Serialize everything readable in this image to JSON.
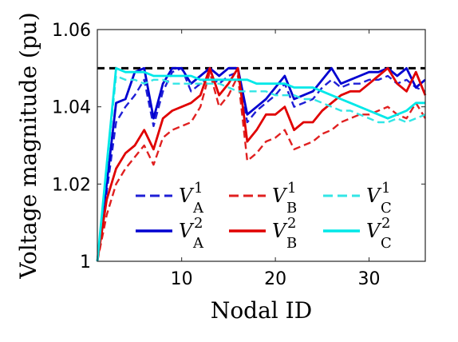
{
  "chart_data": {
    "type": "line",
    "xlabel": "Nodal ID",
    "ylabel": "Voltage magnitude (pu)",
    "xlim": [
      1,
      36
    ],
    "ylim": [
      1,
      1.06
    ],
    "xticks": [
      10,
      20,
      30
    ],
    "yticks": [
      1,
      1.02,
      1.04,
      1.06
    ],
    "ytick_labels": [
      "1",
      "1.02",
      "1.04",
      "1.06"
    ],
    "reference_line": {
      "y": 1.05,
      "style": "dashed",
      "color": "#000000"
    },
    "grid": false,
    "legend_placement": "bottom",
    "x": [
      1,
      2,
      3,
      4,
      5,
      6,
      7,
      8,
      9,
      10,
      11,
      12,
      13,
      14,
      15,
      16,
      17,
      18,
      19,
      20,
      21,
      22,
      23,
      24,
      25,
      26,
      27,
      28,
      29,
      30,
      31,
      32,
      33,
      34,
      35,
      36
    ],
    "series": [
      {
        "name_main": "V",
        "name_sup": "1",
        "name_sub": "A",
        "color": "#1f1fd6",
        "dash": "dashed",
        "values": [
          1.0,
          1.018,
          1.036,
          1.04,
          1.043,
          1.047,
          1.035,
          1.044,
          1.049,
          1.05,
          1.044,
          1.046,
          1.048,
          1.046,
          1.048,
          1.049,
          1.036,
          1.039,
          1.041,
          1.043,
          1.046,
          1.04,
          1.041,
          1.042,
          1.045,
          1.047,
          1.045,
          1.046,
          1.046,
          1.047,
          1.047,
          1.048,
          1.046,
          1.047,
          1.045,
          1.044
        ]
      },
      {
        "name_main": "V",
        "name_sup": "2",
        "name_sub": "A",
        "color": "#0000d0",
        "dash": "solid",
        "values": [
          1.0,
          1.02,
          1.041,
          1.042,
          1.049,
          1.05,
          1.037,
          1.046,
          1.05,
          1.05,
          1.046,
          1.048,
          1.05,
          1.048,
          1.05,
          1.05,
          1.038,
          1.04,
          1.042,
          1.045,
          1.048,
          1.042,
          1.043,
          1.044,
          1.047,
          1.05,
          1.046,
          1.047,
          1.048,
          1.049,
          1.049,
          1.05,
          1.048,
          1.05,
          1.045,
          1.047
        ]
      },
      {
        "name_main": "V",
        "name_sup": "1",
        "name_sub": "B",
        "color": "#e02020",
        "dash": "dashed",
        "values": [
          1.0,
          1.012,
          1.02,
          1.024,
          1.027,
          1.03,
          1.025,
          1.032,
          1.034,
          1.035,
          1.036,
          1.04,
          1.049,
          1.04,
          1.043,
          1.048,
          1.026,
          1.028,
          1.031,
          1.032,
          1.034,
          1.029,
          1.03,
          1.031,
          1.033,
          1.034,
          1.036,
          1.037,
          1.038,
          1.038,
          1.039,
          1.04,
          1.038,
          1.037,
          1.041,
          1.037
        ]
      },
      {
        "name_main": "V",
        "name_sup": "2",
        "name_sub": "B",
        "color": "#e00000",
        "dash": "solid",
        "values": [
          1.0,
          1.016,
          1.024,
          1.028,
          1.03,
          1.034,
          1.029,
          1.037,
          1.039,
          1.04,
          1.041,
          1.043,
          1.05,
          1.043,
          1.046,
          1.05,
          1.031,
          1.034,
          1.038,
          1.038,
          1.04,
          1.034,
          1.036,
          1.036,
          1.039,
          1.041,
          1.043,
          1.044,
          1.044,
          1.046,
          1.048,
          1.05,
          1.046,
          1.044,
          1.049,
          1.043
        ]
      },
      {
        "name_main": "V",
        "name_sup": "1",
        "name_sub": "C",
        "color": "#33e6e6",
        "dash": "dashed",
        "values": [
          1.0,
          1.024,
          1.048,
          1.047,
          1.047,
          1.046,
          1.047,
          1.047,
          1.046,
          1.046,
          1.046,
          1.046,
          1.046,
          1.046,
          1.045,
          1.044,
          1.044,
          1.044,
          1.044,
          1.043,
          1.043,
          1.043,
          1.042,
          1.042,
          1.041,
          1.04,
          1.039,
          1.039,
          1.038,
          1.037,
          1.036,
          1.036,
          1.037,
          1.036,
          1.037,
          1.038
        ]
      },
      {
        "name_main": "V",
        "name_sup": "2",
        "name_sub": "C",
        "color": "#00e8e8",
        "dash": "solid",
        "values": [
          1.0,
          1.025,
          1.05,
          1.049,
          1.049,
          1.049,
          1.048,
          1.048,
          1.048,
          1.048,
          1.048,
          1.047,
          1.047,
          1.047,
          1.047,
          1.047,
          1.047,
          1.046,
          1.046,
          1.046,
          1.046,
          1.045,
          1.045,
          1.045,
          1.044,
          1.043,
          1.042,
          1.041,
          1.04,
          1.039,
          1.038,
          1.037,
          1.038,
          1.039,
          1.041,
          1.041
        ]
      }
    ]
  }
}
